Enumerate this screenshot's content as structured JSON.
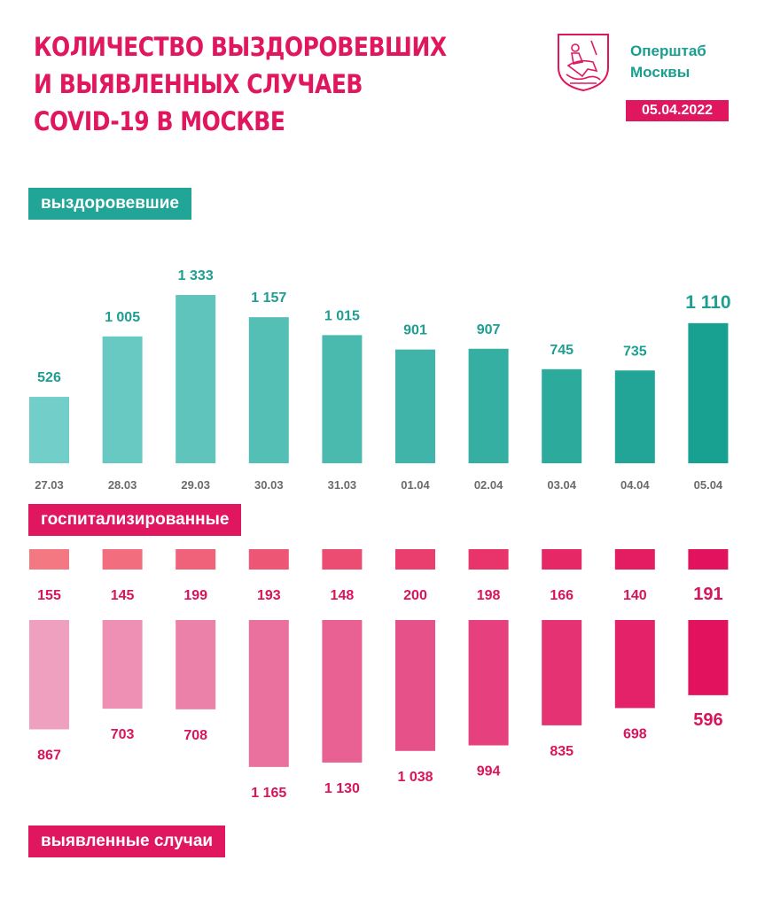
{
  "header": {
    "title_lines": [
      "КОЛИЧЕСТВО ВЫЗДОРОВЕВШИХ",
      "И ВЫЯВЛЕННЫХ СЛУЧАЕВ",
      "COVID-19 В МОСКВЕ"
    ],
    "org_lines": [
      "Оперштаб",
      "Москвы"
    ],
    "date": "05.04.2022",
    "emblem_icon": "moscow-coat-of-arms-icon"
  },
  "labels": {
    "recovered": "выздоровевшие",
    "hospitalized": "госпитализированные",
    "detected": "выявленные случаи"
  },
  "colors": {
    "teal": "#21a596",
    "pink": "#e0175f"
  },
  "chart_data": [
    {
      "type": "bar",
      "categories": [
        "27.03",
        "28.03",
        "29.03",
        "30.03",
        "31.03",
        "01.04",
        "02.04",
        "03.04",
        "04.04",
        "05.04"
      ],
      "values": [
        526,
        1005,
        1333,
        1157,
        1015,
        901,
        907,
        745,
        735,
        1110
      ],
      "value_labels": [
        "526",
        "1 005",
        "1 333",
        "1 157",
        "1 015",
        "901",
        "907",
        "745",
        "735",
        "1 110"
      ],
      "series_label": "выздоровевшие"
    },
    {
      "type": "bar",
      "categories": [
        "27.03",
        "28.03",
        "29.03",
        "30.03",
        "31.03",
        "01.04",
        "02.04",
        "03.04",
        "04.04",
        "05.04"
      ],
      "values": [
        155,
        145,
        199,
        193,
        148,
        200,
        198,
        166,
        140,
        191
      ],
      "value_labels": [
        "155",
        "145",
        "199",
        "193",
        "148",
        "200",
        "198",
        "166",
        "140",
        "191"
      ],
      "series_label": "госпитализированные"
    },
    {
      "type": "bar",
      "categories": [
        "27.03",
        "28.03",
        "29.03",
        "30.03",
        "31.03",
        "01.04",
        "02.04",
        "03.04",
        "04.04",
        "05.04"
      ],
      "values": [
        867,
        703,
        708,
        1165,
        1130,
        1038,
        994,
        835,
        698,
        596
      ],
      "value_labels": [
        "867",
        "703",
        "708",
        "1 165",
        "1 130",
        "1 038",
        "994",
        "835",
        "698",
        "596"
      ],
      "series_label": "выявленные случаи"
    }
  ]
}
